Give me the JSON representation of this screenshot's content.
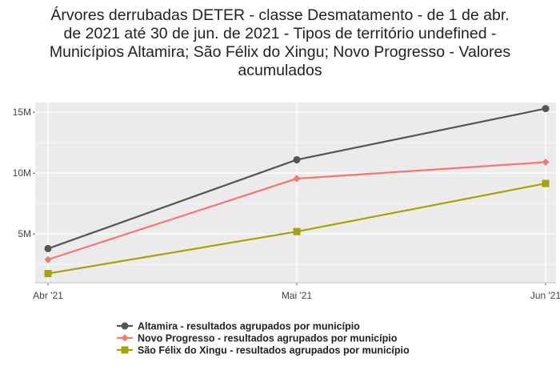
{
  "chart_data": {
    "type": "line",
    "title_lines": [
      "Árvores derrubadas DETER - classe Desmatamento - de 1 de abr.",
      "de 2021 até 30 de jun. de 2021 - Tipos de território undefined -",
      "Municípios Altamira; São Félix do Xingu; Novo Progresso - Valores",
      "acumulados"
    ],
    "x": [
      "Abr '21",
      "Mai '21",
      "Jun '21"
    ],
    "y_ticks": [
      {
        "value": 5000000,
        "label": "5M"
      },
      {
        "value": 10000000,
        "label": "10M"
      },
      {
        "value": 15000000,
        "label": "15M"
      }
    ],
    "ylim": [
      1000000,
      15800000
    ],
    "grid": true,
    "legend_position": "bottom",
    "series": [
      {
        "name": "Altamira - resultados agrupados por município",
        "color": "#555555",
        "marker": "circle",
        "values": [
          3800000,
          11100000,
          15300000
        ]
      },
      {
        "name": "Novo Progresso - resultados agrupados por município",
        "color": "#f8766d",
        "marker": "diamond",
        "values": [
          2900000,
          9550000,
          10900000
        ]
      },
      {
        "name": "São Félix do Xingu - resultados agrupados por município",
        "color": "#a3a500",
        "marker": "square",
        "values": [
          1750000,
          5200000,
          9150000
        ]
      }
    ]
  }
}
